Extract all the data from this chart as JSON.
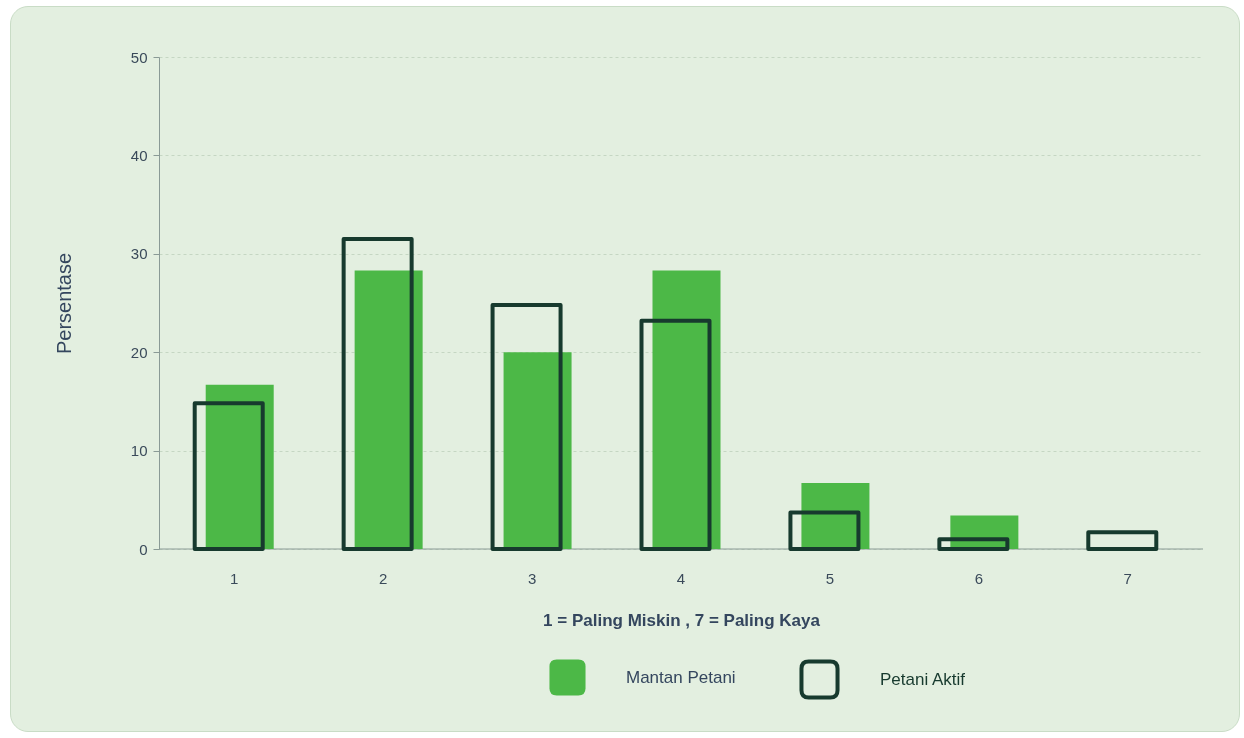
{
  "chart_data": {
    "type": "bar",
    "xlabel": "1 = Paling Miskin , 7 = Paling Kaya",
    "ylabel": "Persentase",
    "categories": [
      "1",
      "2",
      "3",
      "4",
      "5",
      "6",
      "7"
    ],
    "series": [
      {
        "name": "Mantan Petani",
        "color": "#4cb847",
        "values": [
          16.7,
          28.3,
          20,
          28.3,
          6.7,
          3.4,
          0
        ]
      },
      {
        "name": "Petani Aktif",
        "color": "#173a2e",
        "values": [
          14.8,
          31.5,
          24.8,
          23.2,
          3.7,
          1,
          1.7
        ]
      }
    ],
    "ylim": [
      0,
      50
    ],
    "yticks": [
      0,
      10,
      20,
      30,
      40,
      50
    ],
    "grid": "y",
    "legend": "bottom"
  }
}
